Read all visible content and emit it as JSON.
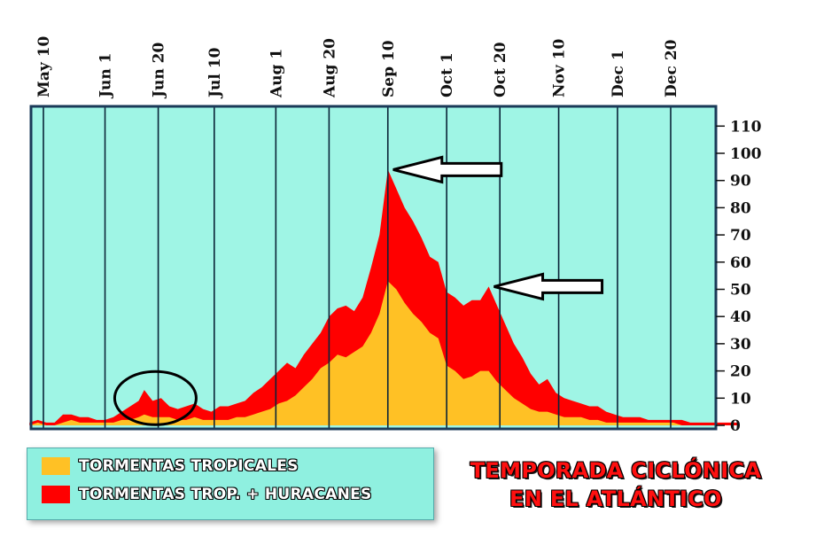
{
  "chart_data": {
    "type": "area",
    "title": "TEMPORADA CICLÓNICA EN EL ATLÁNTICO",
    "title_lines": [
      "TEMPORADA CICLÓNICA",
      "EN EL ATLÁNTICO"
    ],
    "y_ticks": [
      0,
      10,
      20,
      30,
      40,
      50,
      60,
      70,
      80,
      90,
      100,
      110
    ],
    "ylim": [
      0,
      115
    ],
    "x_ticks": [
      "May 10",
      "Jun 1",
      "Jun 20",
      "Jul 10",
      "Aug 1",
      "Aug 20",
      "Sep 10",
      "Oct 1",
      "Oct 20",
      "Nov 10",
      "Dec 1",
      "Dec 20"
    ],
    "x_tick_days": [
      130,
      152,
      171,
      191,
      213,
      232,
      253,
      274,
      293,
      314,
      335,
      354
    ],
    "x_range": [
      125,
      378
    ],
    "grid": true,
    "legend_position": "bottom-left",
    "background_color": "#9ff5e5",
    "series": [
      {
        "name": "TORMENTAS TROP. + HURACANES",
        "color": "#ff0000",
        "x": [
          125,
          128,
          131,
          134,
          137,
          140,
          143,
          146,
          149,
          152,
          155,
          158,
          161,
          164,
          166,
          169,
          172,
          175,
          178,
          181,
          184,
          187,
          190,
          193,
          196,
          199,
          202,
          205,
          208,
          211,
          214,
          217,
          220,
          223,
          226,
          229,
          232,
          235,
          238,
          241,
          244,
          247,
          250,
          253,
          256,
          259,
          262,
          265,
          268,
          271,
          274,
          277,
          280,
          283,
          286,
          289,
          292,
          295,
          298,
          301,
          304,
          307,
          310,
          313,
          316,
          319,
          322,
          325,
          328,
          331,
          334,
          337,
          340,
          343,
          346,
          349,
          352,
          355,
          358,
          361,
          364,
          367,
          370,
          373,
          376,
          378
        ],
        "values": [
          1,
          2,
          1,
          1,
          4,
          4,
          3,
          3,
          2,
          2,
          3,
          5,
          7,
          9,
          13,
          9,
          10,
          7,
          6,
          7,
          8,
          6,
          5,
          7,
          7,
          8,
          9,
          12,
          14,
          17,
          20,
          23,
          21,
          26,
          30,
          34,
          40,
          43,
          44,
          42,
          47,
          58,
          70,
          94,
          87,
          80,
          75,
          69,
          62,
          60,
          49,
          47,
          44,
          46,
          46,
          51,
          44,
          37,
          30,
          25,
          19,
          15,
          17,
          12,
          10,
          9,
          8,
          7,
          7,
          5,
          4,
          3,
          3,
          3,
          2,
          2,
          2,
          2,
          2,
          1,
          1,
          1,
          1,
          1,
          1,
          1
        ]
      },
      {
        "name": "TORMENTAS TROPICALES",
        "color": "#ffc125",
        "x": [
          125,
          128,
          131,
          134,
          137,
          140,
          143,
          146,
          149,
          152,
          155,
          158,
          161,
          164,
          166,
          169,
          172,
          175,
          178,
          181,
          184,
          187,
          190,
          193,
          196,
          199,
          202,
          205,
          208,
          211,
          214,
          217,
          220,
          223,
          226,
          229,
          232,
          235,
          238,
          241,
          244,
          247,
          250,
          253,
          256,
          259,
          262,
          265,
          268,
          271,
          274,
          277,
          280,
          283,
          286,
          289,
          292,
          295,
          298,
          301,
          304,
          307,
          310,
          313,
          316,
          319,
          322,
          325,
          328,
          331,
          334,
          337,
          340,
          343,
          346,
          349,
          352,
          355,
          358,
          361,
          364,
          367,
          370,
          373,
          376,
          378
        ],
        "values": [
          0,
          1,
          0,
          0,
          1,
          2,
          1,
          1,
          1,
          1,
          1,
          2,
          2,
          3,
          4,
          3,
          3,
          3,
          2,
          2,
          3,
          2,
          2,
          2,
          2,
          3,
          3,
          4,
          5,
          6,
          8,
          9,
          11,
          14,
          17,
          21,
          23,
          26,
          25,
          27,
          29,
          34,
          41,
          53,
          50,
          45,
          41,
          38,
          34,
          32,
          22,
          20,
          17,
          18,
          20,
          20,
          16,
          13,
          10,
          8,
          6,
          5,
          5,
          4,
          3,
          3,
          3,
          2,
          2,
          1,
          1,
          1,
          1,
          1,
          1,
          1,
          1,
          1,
          0,
          0,
          0,
          0,
          0,
          0,
          0,
          0
        ]
      }
    ],
    "legend": [
      {
        "label": "TORMENTAS TROPICALES",
        "color": "#ffc125"
      },
      {
        "label": "TORMENTAS TROP. + HURACANES",
        "color": "#ff0000"
      }
    ],
    "annotations": [
      {
        "type": "arrow",
        "points_to": "peak",
        "x": 253,
        "y": 94
      },
      {
        "type": "arrow",
        "points_to": "secondary-peak",
        "x": 289,
        "y": 51
      },
      {
        "type": "ellipse",
        "circles_x_range": [
          160,
          180
        ],
        "y": 10
      }
    ]
  }
}
